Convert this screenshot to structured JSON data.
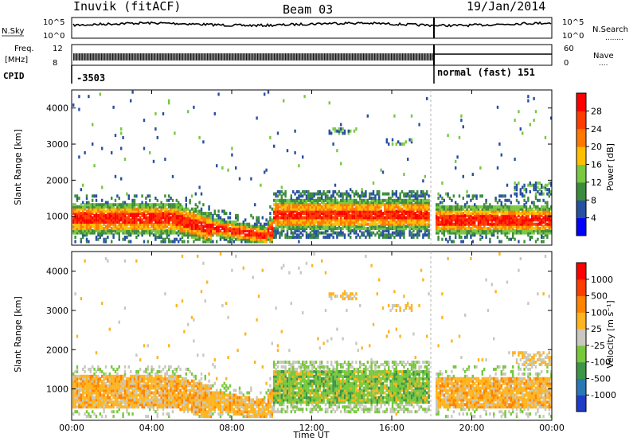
{
  "header": {
    "station": "Inuvik (fitACF)",
    "beam": "Beam 03",
    "date": "19/Jan/2014"
  },
  "panels": {
    "nsky_label": "N.Sky",
    "nsky_ticks": [
      "10^5",
      "10^0"
    ],
    "nsearch_label": "N.Search",
    "nsearch_ticks": [
      "10^5",
      "10^0"
    ],
    "nsearch_dots": "........",
    "freq_label_line1": "Freq.",
    "freq_label_line2": "[MHz]",
    "freq_ticks": [
      "12",
      "8"
    ],
    "nave_label": "Nave",
    "nave_dots": "....",
    "nave_ticks": [
      "60",
      "0"
    ],
    "cpid_label": "CPID",
    "cpid_left": "-3503",
    "cpid_right": "normal (fast) 151"
  },
  "chart_data": [
    {
      "type": "heatmap",
      "name": "power",
      "ylabel": "Slant Range [km]",
      "xlabel": "",
      "ylim": [
        200,
        4500
      ],
      "xlim": [
        0,
        24
      ],
      "y_ticks": [
        "1000",
        "2000",
        "3000",
        "4000"
      ],
      "colorbar_label": "Power [dB]",
      "colorbar_ticks": [
        "28",
        "24",
        "20",
        "16",
        "12",
        "8",
        "4"
      ],
      "colors": [
        "#0000ff",
        "#2850a0",
        "#3c8c3c",
        "#78c840",
        "#ffbe00",
        "#ff7800",
        "#ff3c00",
        "#ff0000"
      ]
    },
    {
      "type": "heatmap",
      "name": "velocity",
      "ylabel": "Slant Range [km]",
      "xlabel": "Time UT",
      "ylim": [
        200,
        4500
      ],
      "xlim": [
        0,
        24
      ],
      "y_ticks": [
        "1000",
        "2000",
        "3000",
        "4000"
      ],
      "x_ticks": [
        "00:00",
        "04:00",
        "08:00",
        "12:00",
        "16:00",
        "20:00",
        "00:00"
      ],
      "colorbar_label": "Velocity [m s⁻¹]",
      "colorbar_ticks": [
        "1000",
        "500",
        "100",
        "25",
        "-25",
        "-100",
        "-500",
        "-1000"
      ],
      "colors": [
        "#1e3cc8",
        "#2878b4",
        "#3c9646",
        "#78c83c",
        "#c8c8be",
        "#ffb41e",
        "#ff8200",
        "#ff3c00",
        "#ff0000"
      ]
    }
  ]
}
